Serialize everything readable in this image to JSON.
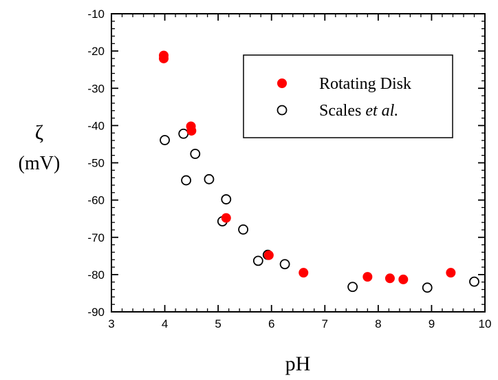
{
  "chart_data": {
    "type": "scatter",
    "title": "",
    "xlabel": "pH",
    "ylabel_symbol": "ζ",
    "ylabel_unit": "(mV)",
    "xlim": [
      3,
      10
    ],
    "ylim": [
      -90,
      -10
    ],
    "xticks": [
      3,
      4,
      5,
      6,
      7,
      8,
      9,
      10
    ],
    "yticks": [
      -10,
      -20,
      -30,
      -40,
      -50,
      -60,
      -70,
      -80,
      -90
    ],
    "x_minor_step": 0.2,
    "y_minor_step": 2,
    "grid": false,
    "legend_position": "top-right",
    "series": [
      {
        "name": "Rotating Disk",
        "marker": "filled-circle",
        "color": "#ff0000",
        "points": [
          [
            3.98,
            -21.2
          ],
          [
            3.98,
            -22.0
          ],
          [
            4.49,
            -40.2
          ],
          [
            4.5,
            -41.4
          ],
          [
            5.15,
            -64.8
          ],
          [
            5.95,
            -74.8
          ],
          [
            6.6,
            -79.5
          ],
          [
            7.8,
            -80.6
          ],
          [
            8.22,
            -81.0
          ],
          [
            8.47,
            -81.3
          ],
          [
            9.36,
            -79.5
          ]
        ]
      },
      {
        "name": "Scales",
        "name_suffix": "et al.",
        "marker": "open-circle",
        "color": "#000000",
        "points": [
          [
            4.0,
            -43.9
          ],
          [
            4.35,
            -42.2
          ],
          [
            4.4,
            -54.7
          ],
          [
            4.57,
            -47.6
          ],
          [
            4.83,
            -54.4
          ],
          [
            5.15,
            -59.8
          ],
          [
            5.08,
            -65.7
          ],
          [
            5.47,
            -67.9
          ],
          [
            5.75,
            -76.3
          ],
          [
            5.93,
            -74.7
          ],
          [
            6.25,
            -77.2
          ],
          [
            7.52,
            -83.3
          ],
          [
            8.92,
            -83.5
          ],
          [
            9.8,
            -81.9
          ]
        ]
      }
    ]
  }
}
